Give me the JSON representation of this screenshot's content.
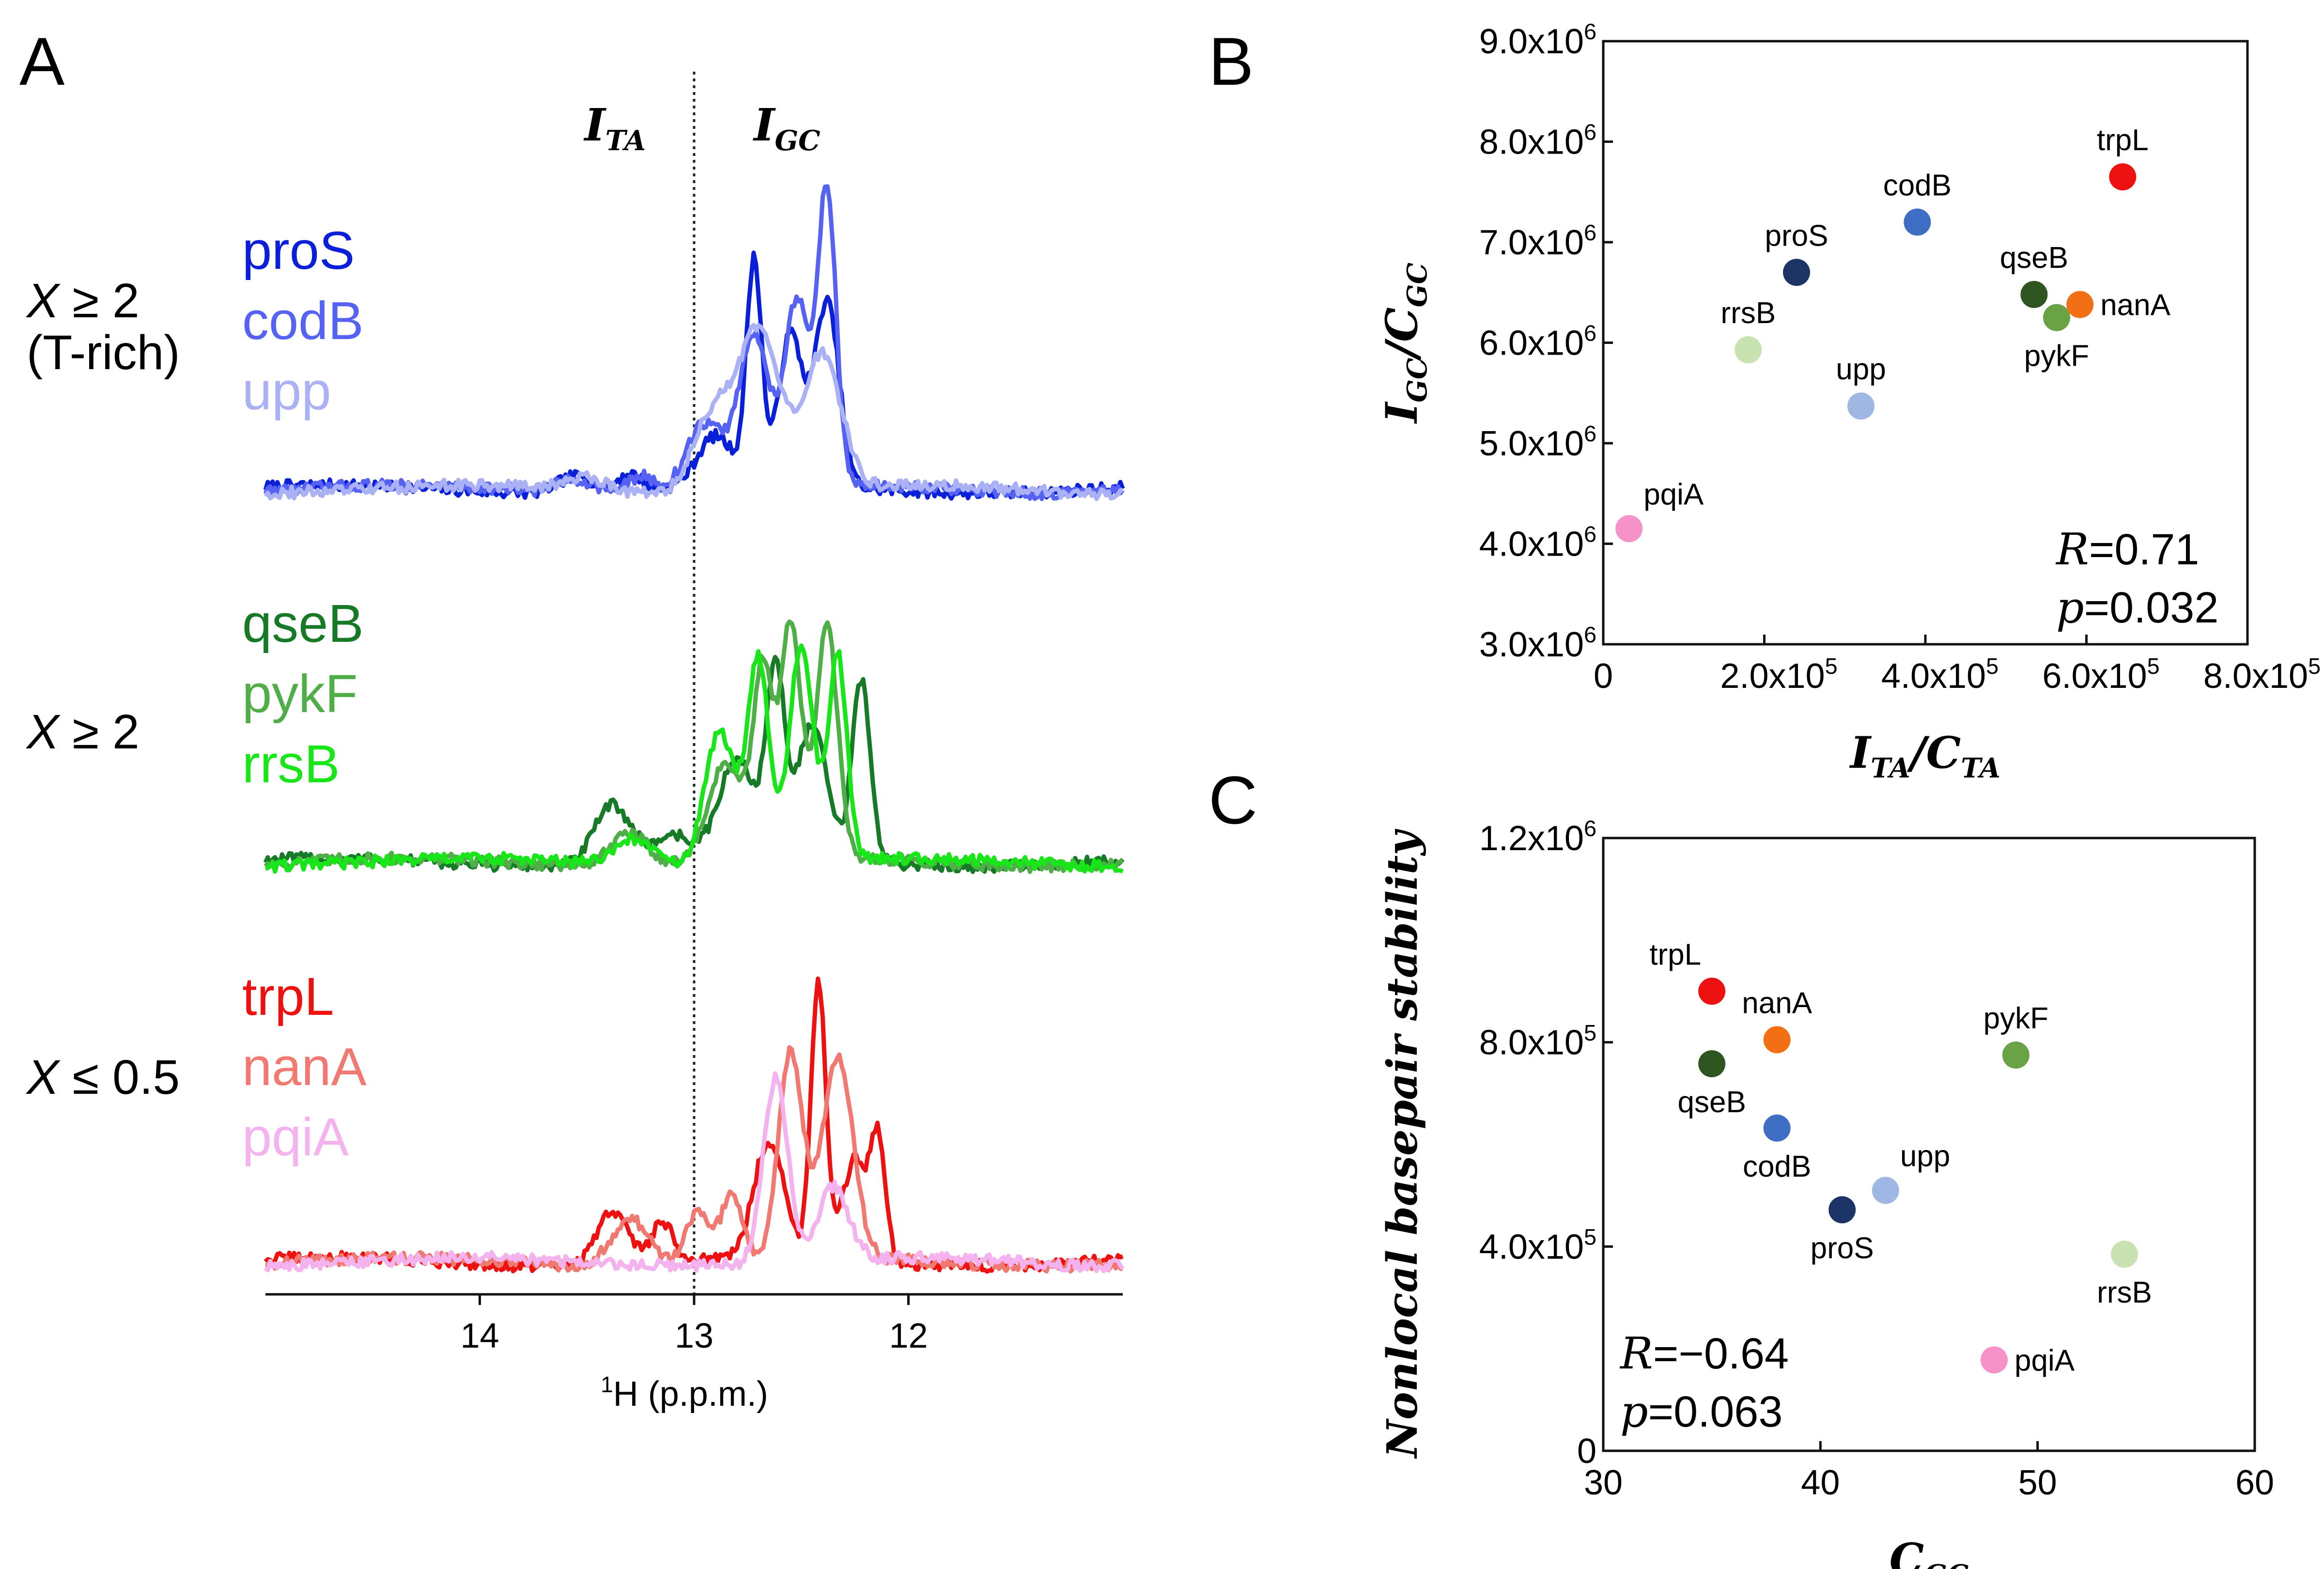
{
  "chart_data": [
    {
      "panel": "A",
      "type": "line",
      "title": "",
      "xlabel": "¹H (p.p.m.)",
      "xlabel_prefix": "1",
      "xlabel_main": "H (p.p.m.)",
      "x_ticks": [
        14,
        13,
        12
      ],
      "xlim": [
        15.0,
        11.0
      ],
      "divider_ppm": 13.0,
      "region_labels": [
        {
          "main": "I",
          "sub": "TA"
        },
        {
          "main": "I",
          "sub": "GC"
        }
      ],
      "groups": [
        {
          "label_lines": [
            "X ≥ 2",
            "(T-rich)"
          ],
          "series": [
            {
              "name": "proS",
              "color": "#0a1fd8",
              "peaks": [
                {
                  "ppm": 13.55,
                  "h": 0.05,
                  "w": 0.12
                },
                {
                  "ppm": 13.3,
                  "h": 0.05,
                  "w": 0.08
                },
                {
                  "ppm": 12.9,
                  "h": 0.15,
                  "w": 0.12
                },
                {
                  "ppm": 12.72,
                  "h": 0.66,
                  "w": 0.05
                },
                {
                  "ppm": 12.55,
                  "h": 0.45,
                  "w": 0.08
                },
                {
                  "ppm": 12.38,
                  "h": 0.55,
                  "w": 0.08
                }
              ]
            },
            {
              "name": "codB",
              "color": "#5663f2",
              "peaks": [
                {
                  "ppm": 13.55,
                  "h": 0.04,
                  "w": 0.12
                },
                {
                  "ppm": 13.25,
                  "h": 0.05,
                  "w": 0.08
                },
                {
                  "ppm": 12.95,
                  "h": 0.2,
                  "w": 0.12
                },
                {
                  "ppm": 12.72,
                  "h": 0.45,
                  "w": 0.1
                },
                {
                  "ppm": 12.52,
                  "h": 0.55,
                  "w": 0.08
                },
                {
                  "ppm": 12.38,
                  "h": 0.88,
                  "w": 0.06
                }
              ]
            },
            {
              "name": "upp",
              "color": "#aab1f5",
              "peaks": [
                {
                  "ppm": 13.5,
                  "h": 0.04,
                  "w": 0.12
                },
                {
                  "ppm": 12.92,
                  "h": 0.22,
                  "w": 0.12
                },
                {
                  "ppm": 12.7,
                  "h": 0.48,
                  "w": 0.14
                },
                {
                  "ppm": 12.4,
                  "h": 0.4,
                  "w": 0.12
                }
              ]
            }
          ]
        },
        {
          "label_lines": [
            "X ≥ 2"
          ],
          "series": [
            {
              "name": "qseB",
              "color": "#167a26",
              "peaks": [
                {
                  "ppm": 13.38,
                  "h": 0.18,
                  "w": 0.12
                },
                {
                  "ppm": 13.1,
                  "h": 0.08,
                  "w": 0.12
                },
                {
                  "ppm": 12.8,
                  "h": 0.3,
                  "w": 0.12
                },
                {
                  "ppm": 12.62,
                  "h": 0.55,
                  "w": 0.06
                },
                {
                  "ppm": 12.45,
                  "h": 0.4,
                  "w": 0.1
                },
                {
                  "ppm": 12.22,
                  "h": 0.55,
                  "w": 0.06
                }
              ]
            },
            {
              "name": "pykF",
              "color": "#4fae48",
              "peaks": [
                {
                  "ppm": 13.3,
                  "h": 0.1,
                  "w": 0.12
                },
                {
                  "ppm": 12.85,
                  "h": 0.3,
                  "w": 0.12
                },
                {
                  "ppm": 12.68,
                  "h": 0.55,
                  "w": 0.06
                },
                {
                  "ppm": 12.55,
                  "h": 0.72,
                  "w": 0.07
                },
                {
                  "ppm": 12.38,
                  "h": 0.7,
                  "w": 0.07
                }
              ]
            },
            {
              "name": "rrsB",
              "color": "#19e619",
              "peaks": [
                {
                  "ppm": 13.28,
                  "h": 0.08,
                  "w": 0.12
                },
                {
                  "ppm": 12.88,
                  "h": 0.4,
                  "w": 0.1
                },
                {
                  "ppm": 12.7,
                  "h": 0.62,
                  "w": 0.07
                },
                {
                  "ppm": 12.5,
                  "h": 0.65,
                  "w": 0.08
                },
                {
                  "ppm": 12.33,
                  "h": 0.62,
                  "w": 0.06
                }
              ]
            }
          ]
        },
        {
          "label_lines": [
            "X ≤ 0.5"
          ],
          "series": [
            {
              "name": "trpL",
              "color": "#ee1111",
              "peaks": [
                {
                  "ppm": 13.38,
                  "h": 0.16,
                  "w": 0.1
                },
                {
                  "ppm": 13.15,
                  "h": 0.12,
                  "w": 0.07
                },
                {
                  "ppm": 12.65,
                  "h": 0.35,
                  "w": 0.1
                },
                {
                  "ppm": 12.42,
                  "h": 0.82,
                  "w": 0.05
                },
                {
                  "ppm": 12.25,
                  "h": 0.3,
                  "w": 0.08
                },
                {
                  "ppm": 12.14,
                  "h": 0.35,
                  "w": 0.05
                }
              ]
            },
            {
              "name": "nanA",
              "color": "#f07a72",
              "peaks": [
                {
                  "ppm": 13.3,
                  "h": 0.14,
                  "w": 0.12
                },
                {
                  "ppm": 12.98,
                  "h": 0.16,
                  "w": 0.08
                },
                {
                  "ppm": 12.82,
                  "h": 0.2,
                  "w": 0.07
                },
                {
                  "ppm": 12.55,
                  "h": 0.62,
                  "w": 0.08
                },
                {
                  "ppm": 12.33,
                  "h": 0.6,
                  "w": 0.1
                }
              ]
            },
            {
              "name": "pqiA",
              "color": "#f4b2ee",
              "peaks": [
                {
                  "ppm": 12.62,
                  "h": 0.55,
                  "w": 0.08
                },
                {
                  "ppm": 12.35,
                  "h": 0.22,
                  "w": 0.1
                }
              ]
            }
          ]
        }
      ]
    },
    {
      "panel": "B",
      "type": "scatter",
      "xlabel": {
        "main": "I",
        "sub": "TA",
        "div": "C",
        "subd": "TA"
      },
      "ylabel": {
        "main": "I",
        "sub": "GC",
        "div": "C",
        "subd": "GC"
      },
      "xlim": [
        0,
        800000
      ],
      "ylim": [
        3000000,
        9000000
      ],
      "x_ticks": [
        {
          "v": 0,
          "m": "0",
          "e": ""
        },
        {
          "v": 200000,
          "m": "2.0x10",
          "e": "5"
        },
        {
          "v": 400000,
          "m": "4.0x10",
          "e": "5"
        },
        {
          "v": 600000,
          "m": "6.0x10",
          "e": "5"
        },
        {
          "v": 800000,
          "m": "8.0x10",
          "e": "5"
        }
      ],
      "y_ticks": [
        {
          "v": 3000000,
          "m": "3.0x10",
          "e": "6"
        },
        {
          "v": 4000000,
          "m": "4.0x10",
          "e": "6"
        },
        {
          "v": 5000000,
          "m": "5.0x10",
          "e": "6"
        },
        {
          "v": 6000000,
          "m": "6.0x10",
          "e": "6"
        },
        {
          "v": 7000000,
          "m": "7.0x10",
          "e": "6"
        },
        {
          "v": 8000000,
          "m": "8.0x10",
          "e": "6"
        },
        {
          "v": 9000000,
          "m": "9.0x10",
          "e": "6"
        }
      ],
      "points": [
        {
          "name": "trpL",
          "x": 645000,
          "y": 7650000,
          "color": "#ee1111",
          "label_pos": "above"
        },
        {
          "name": "codB",
          "x": 390000,
          "y": 7200000,
          "color": "#3f6fc4",
          "label_pos": "above"
        },
        {
          "name": "proS",
          "x": 240000,
          "y": 6700000,
          "color": "#1c3566",
          "label_pos": "above"
        },
        {
          "name": "qseB",
          "x": 535000,
          "y": 6480000,
          "color": "#2f5620",
          "label_pos": "above"
        },
        {
          "name": "nanA",
          "x": 592000,
          "y": 6380000,
          "color": "#f26f14",
          "label_pos": "right"
        },
        {
          "name": "pykF",
          "x": 563000,
          "y": 6250000,
          "color": "#6aa345",
          "label_pos": "below"
        },
        {
          "name": "rrsB",
          "x": 180000,
          "y": 5930000,
          "color": "#c9e2b2",
          "label_pos": "above"
        },
        {
          "name": "upp",
          "x": 320000,
          "y": 5370000,
          "color": "#9fb7e3",
          "label_pos": "above"
        },
        {
          "name": "pqiA",
          "x": 32000,
          "y": 4150000,
          "color": "#f792c9",
          "label_pos": "above-right"
        }
      ],
      "stats": {
        "r_label": "R",
        "r_value": "=0.71",
        "p_label": "p",
        "p_value": "=0.032"
      }
    },
    {
      "panel": "C",
      "type": "scatter",
      "xlabel": {
        "main": "C",
        "sub": "GC"
      },
      "ylabel": "Nonlocal basepair stability",
      "xlim": [
        30,
        60
      ],
      "ylim": [
        0,
        1200000
      ],
      "x_ticks": [
        {
          "v": 30,
          "m": "30",
          "e": ""
        },
        {
          "v": 40,
          "m": "40",
          "e": ""
        },
        {
          "v": 50,
          "m": "50",
          "e": ""
        },
        {
          "v": 60,
          "m": "60",
          "e": ""
        }
      ],
      "y_ticks": [
        {
          "v": 0,
          "m": "0",
          "e": ""
        },
        {
          "v": 400000,
          "m": "4.0x10",
          "e": "5"
        },
        {
          "v": 800000,
          "m": "8.0x10",
          "e": "5"
        },
        {
          "v": 1200000,
          "m": "1.2x10",
          "e": "6"
        }
      ],
      "points": [
        {
          "name": "trpL",
          "x": 35,
          "y": 900000,
          "color": "#ee1111",
          "label_pos": "above-left"
        },
        {
          "name": "nanA",
          "x": 38,
          "y": 805000,
          "color": "#f26f14",
          "label_pos": "above"
        },
        {
          "name": "qseB",
          "x": 35,
          "y": 758000,
          "color": "#2f5620",
          "label_pos": "below"
        },
        {
          "name": "pykF",
          "x": 49,
          "y": 775000,
          "color": "#6aa345",
          "label_pos": "above"
        },
        {
          "name": "codB",
          "x": 38,
          "y": 632000,
          "color": "#3f6fc4",
          "label_pos": "below"
        },
        {
          "name": "upp",
          "x": 43,
          "y": 510000,
          "color": "#9fb7e3",
          "label_pos": "above-right"
        },
        {
          "name": "proS",
          "x": 41,
          "y": 472000,
          "color": "#1c3566",
          "label_pos": "below"
        },
        {
          "name": "rrsB",
          "x": 54,
          "y": 385000,
          "color": "#c9e2b2",
          "label_pos": "below"
        },
        {
          "name": "pqiA",
          "x": 48,
          "y": 178000,
          "color": "#f792c9",
          "label_pos": "right"
        }
      ],
      "stats": {
        "r_label": "R",
        "r_value": "=−0.64",
        "p_label": "p",
        "p_value": "=0.063"
      }
    }
  ]
}
